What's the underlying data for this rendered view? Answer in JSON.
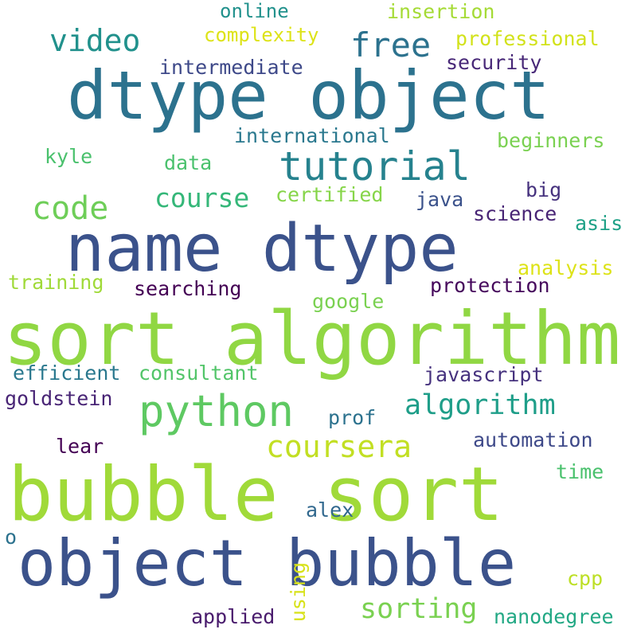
{
  "colors": {
    "background": "#ffffff",
    "purple": "#440154",
    "dark_blue": "#3b528b",
    "slate_blue": "#31688e",
    "teal": "#21918c",
    "green": "#35b779",
    "light_green": "#5ec962",
    "lime": "#90d743",
    "yellow": "#cde11d"
  },
  "words": [
    {
      "text": "sort algorithm",
      "color": "#90d743"
    },
    {
      "text": "bubble sort",
      "color": "#a0da39"
    },
    {
      "text": "name dtype",
      "color": "#3b528b"
    },
    {
      "text": "dtype object",
      "color": "#2c728e"
    },
    {
      "text": "object bubble",
      "color": "#3b528b"
    },
    {
      "text": "python",
      "color": "#5ec962"
    },
    {
      "text": "tutorial",
      "color": "#26828e"
    },
    {
      "text": "video",
      "color": "#21918c"
    },
    {
      "text": "free",
      "color": "#2c728e"
    },
    {
      "text": "code",
      "color": "#6ece58"
    },
    {
      "text": "course",
      "color": "#35b779"
    },
    {
      "text": "coursera",
      "color": "#c2df23"
    },
    {
      "text": "algorithm",
      "color": "#1f9e89"
    },
    {
      "text": "sorting",
      "color": "#7ad151"
    },
    {
      "text": "online",
      "color": "#21918c"
    },
    {
      "text": "insertion",
      "color": "#a5db36"
    },
    {
      "text": "complexity",
      "color": "#dde318"
    },
    {
      "text": "professional",
      "color": "#d2e21b"
    },
    {
      "text": "security",
      "color": "#482878"
    },
    {
      "text": "intermediate",
      "color": "#3e4989"
    },
    {
      "text": "international",
      "color": "#2a788e"
    },
    {
      "text": "beginners",
      "color": "#7ad151"
    },
    {
      "text": "kyle",
      "color": "#4ac16d"
    },
    {
      "text": "data",
      "color": "#4ac16d"
    },
    {
      "text": "certified",
      "color": "#86d549"
    },
    {
      "text": "java",
      "color": "#3b528b"
    },
    {
      "text": "big",
      "color": "#46327e"
    },
    {
      "text": "science",
      "color": "#482475"
    },
    {
      "text": "asis",
      "color": "#1fa187"
    },
    {
      "text": "analysis",
      "color": "#dde318"
    },
    {
      "text": "training",
      "color": "#a0da39"
    },
    {
      "text": "searching",
      "color": "#440154"
    },
    {
      "text": "protection",
      "color": "#46085c"
    },
    {
      "text": "google",
      "color": "#7ad151"
    },
    {
      "text": "efficient",
      "color": "#2a788e"
    },
    {
      "text": "consultant",
      "color": "#52c569"
    },
    {
      "text": "javascript",
      "color": "#46327e"
    },
    {
      "text": "goldstein",
      "color": "#482475"
    },
    {
      "text": "prof",
      "color": "#2c728e"
    },
    {
      "text": "automation",
      "color": "#3e4989"
    },
    {
      "text": "lear",
      "color": "#440154"
    },
    {
      "text": "time",
      "color": "#4ac16d"
    },
    {
      "text": "alex",
      "color": "#31688e"
    },
    {
      "text": "o",
      "color": "#2c728e"
    },
    {
      "text": "cpp",
      "color": "#bddf26"
    },
    {
      "text": "using",
      "color": "#d8e219"
    },
    {
      "text": "applied",
      "color": "#481a6c"
    },
    {
      "text": "nanodegree",
      "color": "#22a884"
    }
  ]
}
